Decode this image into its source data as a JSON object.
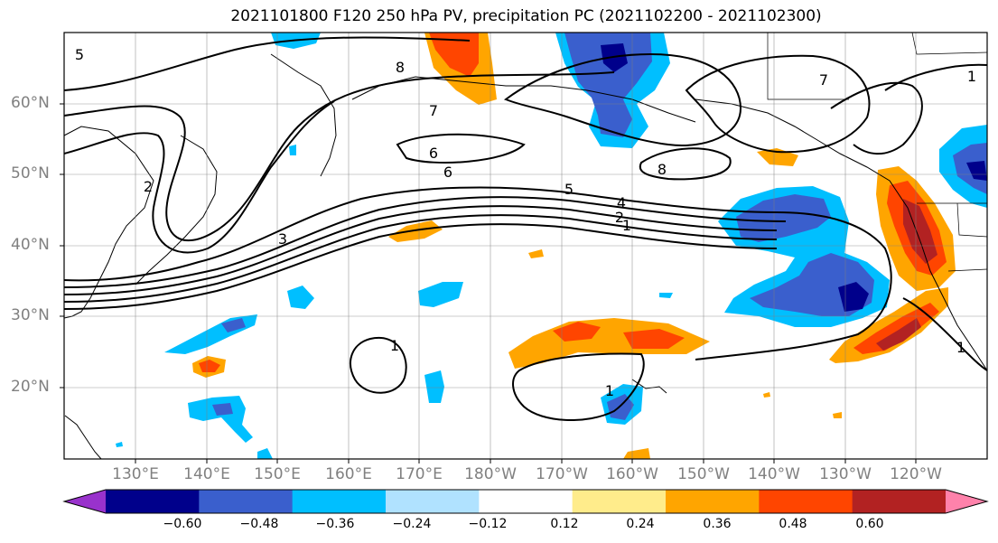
{
  "title": "2021101800 F120 250 hPa PV, precipitation PC (2021102200 - 2021102300)",
  "lat_labels": [
    "60°N",
    "50°N",
    "40°N",
    "30°N",
    "20°N"
  ],
  "lon_labels": [
    "130°E",
    "140°E",
    "150°E",
    "160°E",
    "170°E",
    "180°W",
    "170°W",
    "160°W",
    "150°W",
    "140°W",
    "130°W",
    "120°W"
  ],
  "colorbar": {
    "ticks": [
      "−0.60",
      "−0.48",
      "−0.36",
      "−0.24",
      "−0.12",
      "0.12",
      "0.24",
      "0.36",
      "0.48",
      "0.60"
    ],
    "colors": [
      "#9932cc",
      "#00008b",
      "#3a5fcd",
      "#00bfff",
      "#b0e2ff",
      "#ffffff",
      "#ffec8b",
      "#ffa500",
      "#ff4500",
      "#b22222",
      "#ff82ab"
    ]
  },
  "contour_labels": [
    "5",
    "8",
    "7",
    "6",
    "6",
    "5",
    "4",
    "2",
    "1",
    "3",
    "2",
    "1",
    "1",
    "8",
    "7",
    "1",
    "1"
  ]
}
